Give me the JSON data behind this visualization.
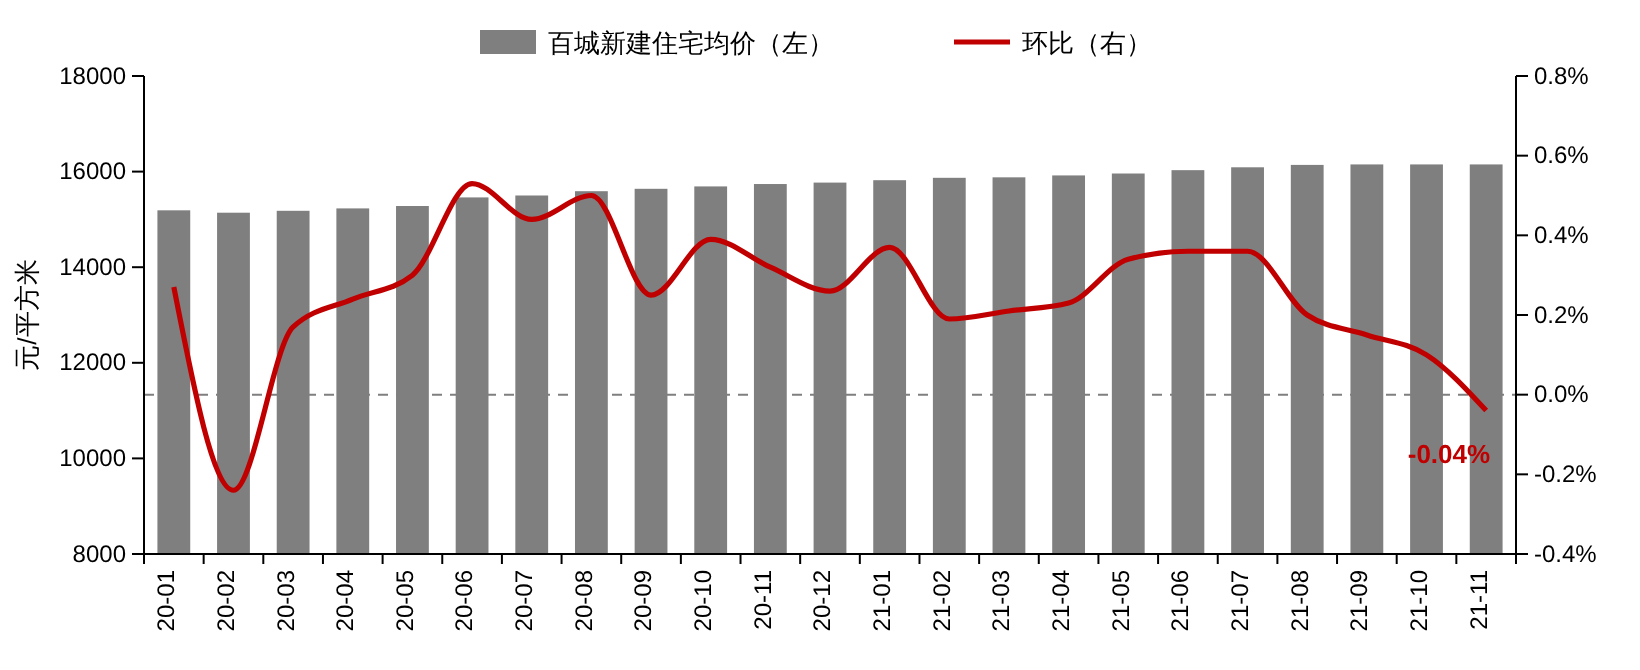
{
  "chart_data": {
    "type": "bar",
    "ylabel": "元/平方米",
    "categories": [
      "20-01",
      "20-02",
      "20-03",
      "20-04",
      "20-05",
      "20-06",
      "20-07",
      "20-08",
      "20-09",
      "20-10",
      "20-11",
      "20-12",
      "21-01",
      "21-02",
      "21-03",
      "21-04",
      "21-05",
      "21-06",
      "21-07",
      "21-08",
      "21-09",
      "21-10",
      "21-11"
    ],
    "series": [
      {
        "name": "百城新建住宅均价（左）",
        "color": "#7f7f7f",
        "values": [
          15190,
          15140,
          15180,
          15230,
          15280,
          15460,
          15500,
          15590,
          15640,
          15690,
          15740,
          15770,
          15820,
          15870,
          15880,
          15920,
          15960,
          16030,
          16090,
          16140,
          16150,
          16150,
          16150
        ]
      },
      {
        "name": "环比（右）",
        "type": "line",
        "axis": "y2",
        "color": "#c00000",
        "values": [
          0.27,
          -0.24,
          0.17,
          0.24,
          0.3,
          0.53,
          0.44,
          0.5,
          0.25,
          0.39,
          0.32,
          0.26,
          0.37,
          0.19,
          0.21,
          0.23,
          0.34,
          0.36,
          0.36,
          0.2,
          0.15,
          0.1,
          -0.04
        ],
        "value_labels": [
          null,
          null,
          null,
          null,
          null,
          null,
          null,
          null,
          null,
          null,
          null,
          null,
          null,
          null,
          null,
          null,
          null,
          null,
          null,
          null,
          null,
          null,
          "-0.04%"
        ]
      }
    ],
    "ylim": [
      8000,
      18000
    ],
    "yticks": [
      8000,
      10000,
      12000,
      14000,
      16000,
      18000
    ],
    "y2lim": [
      -0.4,
      0.8
    ],
    "y2ticks": [
      {
        "value": -0.4,
        "label": "-0.4%"
      },
      {
        "value": -0.2,
        "label": "-0.2%"
      },
      {
        "value": 0,
        "label": "0.0%"
      },
      {
        "value": 0.2,
        "label": "0.2%"
      },
      {
        "value": 0.4,
        "label": "0.4%"
      },
      {
        "value": 0.6,
        "label": "0.6%"
      },
      {
        "value": 0.8,
        "label": "0.8%"
      }
    ],
    "ref_lines": [
      {
        "axis": "y2",
        "value": 0,
        "color": "#7f7f7f",
        "line_style": "dashed"
      }
    ],
    "legend": "top",
    "marker": "none"
  }
}
